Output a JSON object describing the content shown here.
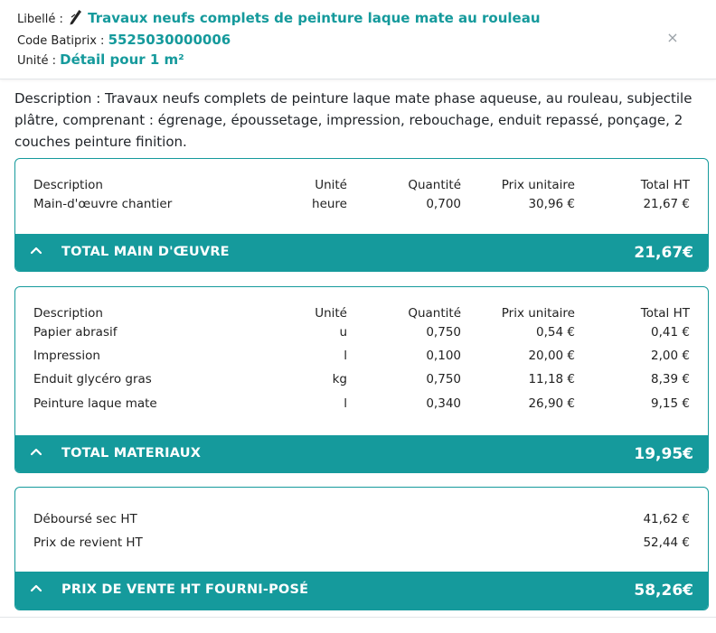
{
  "header": {
    "libelle_label": "Libellé :",
    "libelle_value": "Travaux neufs complets de peinture laque mate au rouleau",
    "code_label": "Code Batiprix :",
    "code_value": "5525030000006",
    "unite_label": "Unité :",
    "unite_value": "Détail pour 1 m²",
    "close_glyph": "×"
  },
  "description": "Description : Travaux neufs complets de peinture laque mate phase aqueuse, au rouleau, subjectile plâtre, comprenant : égrenage, époussetage, impression, rebouchage, enduit repassé, ponçage, 2 couches peinture finition.",
  "columns": {
    "desc": "Description",
    "unit": "Unité",
    "qty": "Quantité",
    "pu": "Prix unitaire",
    "total": "Total HT"
  },
  "main_oeuvre": {
    "rows": [
      {
        "desc": "Main-d'œuvre chantier",
        "unit": "heure",
        "qty": "0,700",
        "pu": "30,96 €",
        "total": "21,67 €"
      }
    ],
    "total_label": "TOTAL MAIN D'ŒUVRE",
    "total_value": "21,67€"
  },
  "materiaux": {
    "rows": [
      {
        "desc": "Papier abrasif",
        "unit": "u",
        "qty": "0,750",
        "pu": "0,54 €",
        "total": "0,41 €"
      },
      {
        "desc": "Impression",
        "unit": "l",
        "qty": "0,100",
        "pu": "20,00 €",
        "total": "2,00 €"
      },
      {
        "desc": "Enduit glycéro gras",
        "unit": "kg",
        "qty": "0,750",
        "pu": "11,18 €",
        "total": "8,39 €"
      },
      {
        "desc": "Peinture laque mate",
        "unit": "l",
        "qty": "0,340",
        "pu": "26,90 €",
        "total": "9,15 €"
      }
    ],
    "total_label": "TOTAL MATERIAUX",
    "total_value": "19,95€"
  },
  "synthese": {
    "rows": [
      {
        "label": "Déboursé sec HT",
        "value": "41,62 €"
      },
      {
        "label": "Prix de revient HT",
        "value": "52,44 €"
      }
    ],
    "total_label": "PRIX DE VENTE HT FOURNI-POSÉ",
    "total_value": "58,26€"
  },
  "colors": {
    "accent": "#159a9c",
    "text": "#1f2328",
    "muted": "#9aa1a7"
  },
  "icons": [
    "pen-icon",
    "close-icon",
    "chevron-up-icon"
  ]
}
